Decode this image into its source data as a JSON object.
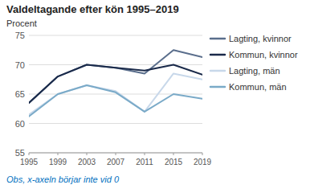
{
  "chart_data": {
    "type": "line",
    "title": "Valdeltagande efter kön 1995–2019",
    "y_label": "Procent",
    "annotations": [
      "Obs, x-axeln börjar inte vid 0"
    ],
    "x": [
      1995,
      1999,
      2003,
      2007,
      2011,
      2015,
      2019
    ],
    "series": [
      {
        "name": "Lagting, kvinnor",
        "color": "#5a6e8c",
        "values": [
          63.5,
          68.0,
          70.0,
          69.5,
          68.5,
          72.5,
          71.3
        ]
      },
      {
        "name": "Kommun, kvinnor",
        "color": "#1a2a4a",
        "values": [
          63.5,
          68.0,
          70.0,
          69.5,
          69.0,
          70.0,
          68.3
        ]
      },
      {
        "name": "Lagting, män",
        "color": "#c8d8ea",
        "values": [
          61.5,
          65.0,
          66.5,
          65.5,
          62.0,
          68.5,
          67.5
        ]
      },
      {
        "name": "Kommun, män",
        "color": "#7aaac8",
        "values": [
          61.2,
          65.0,
          66.5,
          65.3,
          62.0,
          65.0,
          64.2
        ]
      }
    ],
    "xlim": [
      1995,
      2019
    ],
    "xticks": [
      1995,
      1999,
      2003,
      2007,
      2011,
      2015,
      2019
    ],
    "ylim": [
      55,
      75
    ],
    "yticks": [
      55,
      60,
      65,
      70,
      75
    ],
    "grid": true,
    "legend": "right"
  }
}
